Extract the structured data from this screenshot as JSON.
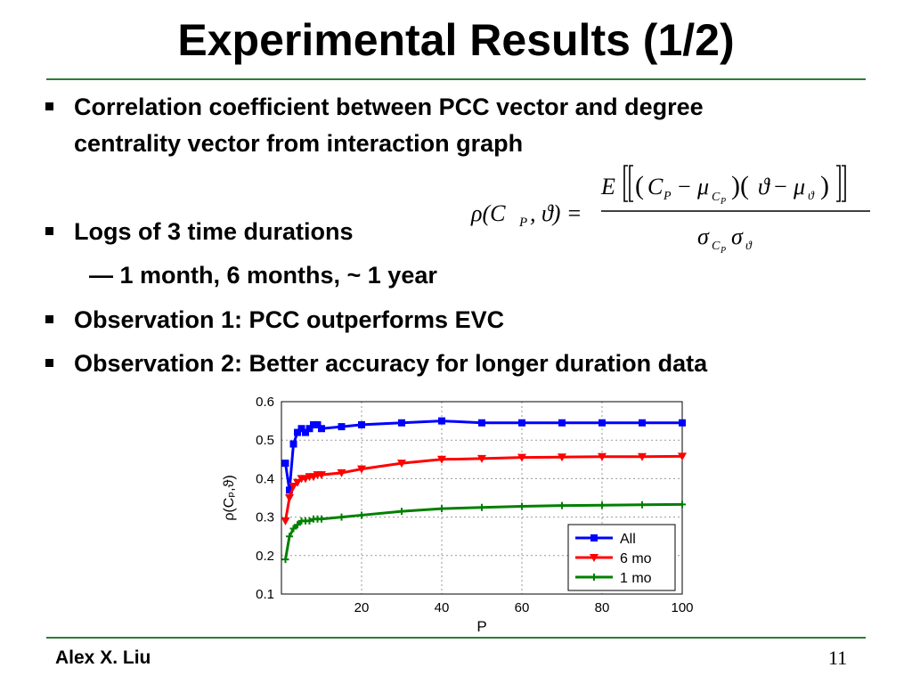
{
  "slide": {
    "title": "Experimental Results (1/2)",
    "bullets": [
      {
        "text_line1": "Correlation coefficient between PCC vector and degree",
        "text_line2": "centrality vector from interaction graph"
      },
      {
        "text": "Logs of 3 time durations"
      },
      {
        "text": "— 1 month, 6 months, ~ 1 year"
      },
      {
        "text": "Observation 1: PCC outperforms EVC"
      },
      {
        "text": "Observation 2: Better accuracy for longer duration data"
      }
    ],
    "footer_author": "Alex X. Liu",
    "page_number": "11",
    "accent_color": "#2e7d32"
  },
  "chart_data": {
    "type": "line",
    "xlabel": "P",
    "ylabel": "ρ(Cₚ,ϑ)",
    "xlim": [
      0,
      100
    ],
    "ylim": [
      0.1,
      0.6
    ],
    "xticks": [
      20,
      40,
      60,
      80,
      100
    ],
    "yticks": [
      0.1,
      0.2,
      0.3,
      0.4,
      0.5,
      0.6
    ],
    "grid": true,
    "legend_position": "bottom-right",
    "series": [
      {
        "name": "All",
        "color": "#0000ff",
        "marker": "square",
        "x": [
          1,
          2,
          3,
          4,
          5,
          6,
          7,
          8,
          9,
          10,
          15,
          20,
          30,
          40,
          50,
          60,
          70,
          80,
          90,
          100
        ],
        "y": [
          0.44,
          0.37,
          0.49,
          0.52,
          0.53,
          0.52,
          0.53,
          0.54,
          0.54,
          0.53,
          0.535,
          0.54,
          0.545,
          0.55,
          0.545,
          0.545,
          0.545,
          0.545,
          0.545,
          0.545
        ]
      },
      {
        "name": "6 mo",
        "color": "#ff0000",
        "marker": "triangle-down",
        "x": [
          1,
          2,
          3,
          4,
          5,
          6,
          7,
          8,
          9,
          10,
          15,
          20,
          30,
          40,
          50,
          60,
          70,
          80,
          90,
          100
        ],
        "y": [
          0.29,
          0.35,
          0.38,
          0.39,
          0.4,
          0.4,
          0.405,
          0.405,
          0.41,
          0.41,
          0.415,
          0.425,
          0.44,
          0.45,
          0.452,
          0.455,
          0.456,
          0.457,
          0.457,
          0.458
        ]
      },
      {
        "name": "1 mo",
        "color": "#008000",
        "marker": "plus",
        "x": [
          1,
          2,
          3,
          4,
          5,
          6,
          7,
          8,
          9,
          10,
          15,
          20,
          30,
          40,
          50,
          60,
          70,
          80,
          90,
          100
        ],
        "y": [
          0.19,
          0.25,
          0.27,
          0.28,
          0.29,
          0.29,
          0.29,
          0.295,
          0.295,
          0.295,
          0.3,
          0.305,
          0.315,
          0.322,
          0.325,
          0.328,
          0.33,
          0.331,
          0.332,
          0.333
        ]
      }
    ]
  }
}
